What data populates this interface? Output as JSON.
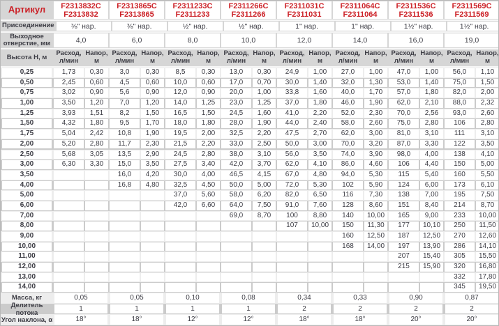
{
  "colors": {
    "red": "#cc2127",
    "bg": "#d6d6d6",
    "light": "#ededed",
    "dark": "#cbcbcb",
    "cell": "#ffffff",
    "text": "#3c3c44",
    "border": "#b8b8b8"
  },
  "header": {
    "article_label": "Артикул",
    "connection_label": "Присоединение",
    "outlet_label": "Выходное отверстие, мм",
    "height_label": "Высота Н, м",
    "flow_label": "Расход, л/мин",
    "head_label": "Напор, м"
  },
  "products": [
    {
      "code_c": "F2313832C",
      "code": "F2313832",
      "connection": "⅜\" нар.",
      "outlet": "4,0"
    },
    {
      "code_c": "F2313865C",
      "code": "F2313865",
      "connection": "⅜\" нар.",
      "outlet": "6,0"
    },
    {
      "code_c": "F2311233C",
      "code": "F2311233",
      "connection": "½\" нар.",
      "outlet": "8,0"
    },
    {
      "code_c": "F2311266C",
      "code": "F2311266",
      "connection": "½\" нар.",
      "outlet": "10,0"
    },
    {
      "code_c": "F2311031C",
      "code": "F2311031",
      "connection": "1\" нар.",
      "outlet": "12,0"
    },
    {
      "code_c": "F2311064C",
      "code": "F2311064",
      "connection": "1\" нар.",
      "outlet": "14,0"
    },
    {
      "code_c": "F2311536C",
      "code": "F2311536",
      "connection": "1½\" нар.",
      "outlet": "16,0"
    },
    {
      "code_c": "F2311569C",
      "code": "F2311569",
      "connection": "1½\" нар.",
      "outlet": "19,0"
    }
  ],
  "table": {
    "rows": [
      {
        "h": "0,25",
        "v": [
          "1,73",
          "0,30",
          "3,0",
          "0,30",
          "8,5",
          "0,30",
          "13,0",
          "0,30",
          "24,9",
          "1,00",
          "27,0",
          "1,00",
          "47,0",
          "1,00",
          "56,0",
          "1,10"
        ]
      },
      {
        "h": "0,50",
        "v": [
          "2,45",
          "0,60",
          "4,5",
          "0,60",
          "10,0",
          "0,60",
          "17,0",
          "0,70",
          "30,0",
          "1,40",
          "32,0",
          "1,30",
          "53,0",
          "1,40",
          "75,0",
          "1,50"
        ]
      },
      {
        "h": "0,75",
        "v": [
          "3,02",
          "0,90",
          "5,6",
          "0,90",
          "12,0",
          "0,90",
          "20,0",
          "1,00",
          "33,8",
          "1,60",
          "40,0",
          "1,70",
          "57,0",
          "1,80",
          "82,0",
          "2,00"
        ]
      },
      {
        "h": "1,00",
        "v": [
          "3,50",
          "1,20",
          "7,0",
          "1,20",
          "14,0",
          "1,25",
          "23,0",
          "1,25",
          "37,0",
          "1,80",
          "46,0",
          "1,90",
          "62,0",
          "2,10",
          "88,0",
          "2,32"
        ]
      },
      {
        "h": "1,25",
        "v": [
          "3,93",
          "1,51",
          "8,2",
          "1,50",
          "16,5",
          "1,50",
          "24,5",
          "1,60",
          "41,0",
          "2,20",
          "52,0",
          "2,30",
          "70,0",
          "2,56",
          "93,0",
          "2,60"
        ]
      },
      {
        "h": "1,50",
        "v": [
          "4,32",
          "1,80",
          "9,5",
          "1,70",
          "18,0",
          "1,80",
          "28,0",
          "1,90",
          "44,0",
          "2,40",
          "58,0",
          "2,60",
          "75,0",
          "2,80",
          "106",
          "2,80"
        ]
      },
      {
        "h": "1,75",
        "v": [
          "5,04",
          "2,42",
          "10,8",
          "1,90",
          "19,5",
          "2,00",
          "32,5",
          "2,20",
          "47,5",
          "2,70",
          "62,0",
          "3,00",
          "81,0",
          "3,10",
          "111",
          "3,10"
        ]
      },
      {
        "h": "2,00",
        "v": [
          "5,20",
          "2,80",
          "11,7",
          "2,30",
          "21,5",
          "2,20",
          "33,0",
          "2,50",
          "50,0",
          "3,00",
          "70,0",
          "3,20",
          "87,0",
          "3,30",
          "122",
          "3,50"
        ]
      },
      {
        "h": "2,50",
        "v": [
          "5,68",
          "3,05",
          "13,5",
          "2,90",
          "24,5",
          "2,80",
          "38,0",
          "3,10",
          "56,0",
          "3,50",
          "74,0",
          "3,90",
          "98,0",
          "4,00",
          "138",
          "4,10"
        ]
      },
      {
        "h": "3,00",
        "v": [
          "6,30",
          "3,30",
          "15,0",
          "3,50",
          "27,5",
          "3,40",
          "42,0",
          "3,70",
          "62,0",
          "4,10",
          "86,0",
          "4,60",
          "106",
          "4,40",
          "150",
          "5,00"
        ]
      },
      {
        "h": "3,50",
        "v": [
          "",
          "",
          "16,0",
          "4,20",
          "30,0",
          "4,00",
          "46,5",
          "4,15",
          "67,0",
          "4,80",
          "94,0",
          "5,30",
          "115",
          "5,40",
          "160",
          "5,50"
        ]
      },
      {
        "h": "4,00",
        "v": [
          "",
          "",
          "16,8",
          "4,80",
          "32,5",
          "4,50",
          "50,0",
          "5,00",
          "72,0",
          "5,30",
          "102",
          "5,90",
          "124",
          "6,00",
          "173",
          "6,10"
        ]
      },
      {
        "h": "5,00",
        "v": [
          "",
          "",
          "",
          "",
          "37,0",
          "5,60",
          "58,0",
          "6,20",
          "82,0",
          "6,50",
          "116",
          "7,30",
          "138",
          "7,00",
          "195",
          "7,50"
        ]
      },
      {
        "h": "6,00",
        "v": [
          "",
          "",
          "",
          "",
          "42,0",
          "6,60",
          "64,0",
          "7,50",
          "91,0",
          "7,60",
          "128",
          "8,60",
          "151",
          "8,40",
          "214",
          "8,70"
        ]
      },
      {
        "h": "7,00",
        "v": [
          "",
          "",
          "",
          "",
          "",
          "",
          "69,0",
          "8,70",
          "100",
          "8,80",
          "140",
          "10,00",
          "165",
          "9,00",
          "233",
          "10,00"
        ]
      },
      {
        "h": "8,00",
        "v": [
          "",
          "",
          "",
          "",
          "",
          "",
          "",
          "",
          "107",
          "10,00",
          "150",
          "11,30",
          "177",
          "10,10",
          "250",
          "11,50"
        ]
      },
      {
        "h": "9,00",
        "v": [
          "",
          "",
          "",
          "",
          "",
          "",
          "",
          "",
          "",
          "",
          "160",
          "12,50",
          "187",
          "12,50",
          "270",
          "12,60"
        ]
      },
      {
        "h": "10,00",
        "v": [
          "",
          "",
          "",
          "",
          "",
          "",
          "",
          "",
          "",
          "",
          "168",
          "14,00",
          "197",
          "13,90",
          "286",
          "14,10"
        ]
      },
      {
        "h": "11,00",
        "v": [
          "",
          "",
          "",
          "",
          "",
          "",
          "",
          "",
          "",
          "",
          "",
          "",
          "207",
          "15,40",
          "305",
          "15,50"
        ]
      },
      {
        "h": "12,00",
        "v": [
          "",
          "",
          "",
          "",
          "",
          "",
          "",
          "",
          "",
          "",
          "",
          "",
          "215",
          "15,90",
          "320",
          "16,80"
        ]
      },
      {
        "h": "13,00",
        "v": [
          "",
          "",
          "",
          "",
          "",
          "",
          "",
          "",
          "",
          "",
          "",
          "",
          "",
          "",
          "332",
          "17,80"
        ]
      },
      {
        "h": "14,00",
        "v": [
          "",
          "",
          "",
          "",
          "",
          "",
          "",
          "",
          "",
          "",
          "",
          "",
          "",
          "",
          "345",
          "19,50"
        ]
      }
    ]
  },
  "footer": {
    "mass_label": "Масса, кг",
    "mass": [
      "0,05",
      "0,05",
      "0,10",
      "0,08",
      "0,34",
      "0,33",
      "0,90",
      "0,87"
    ],
    "divider_label": "Делитель потока",
    "divider": [
      "1",
      "1",
      "1",
      "1",
      "2",
      "2",
      "2",
      "2"
    ],
    "angle_label": "Угол наклона, α",
    "angle": [
      "18°",
      "18°",
      "12°",
      "12°",
      "18°",
      "18°",
      "20°",
      "20°"
    ]
  }
}
